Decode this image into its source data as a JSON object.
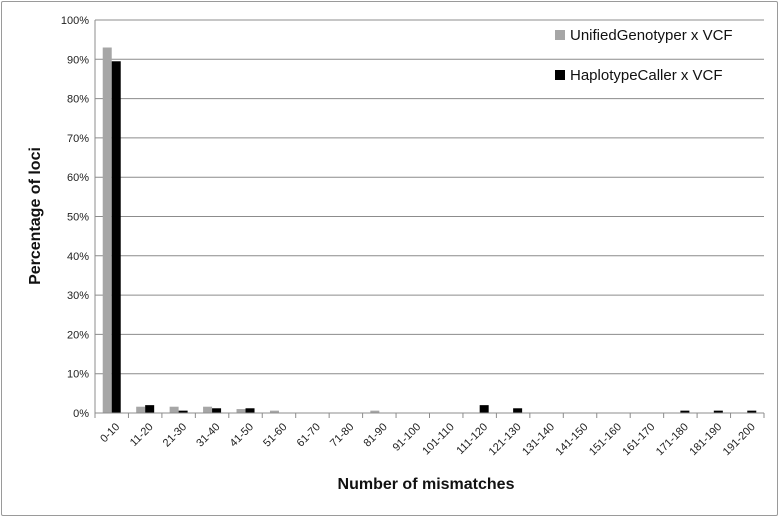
{
  "chart_data": {
    "type": "bar",
    "title": "",
    "xlabel": "Number of mismatches",
    "ylabel": "Percentage of loci",
    "ylim": [
      0,
      100
    ],
    "ytick_step": 10,
    "ytick_suffix": "%",
    "grid": true,
    "legend_position": "top-right",
    "categories": [
      "0-10",
      "11-20",
      "21-30",
      "31-40",
      "41-50",
      "51-60",
      "61-70",
      "71-80",
      "81-90",
      "91-100",
      "101-110",
      "111-120",
      "121-130",
      "131-140",
      "141-150",
      "151-160",
      "161-170",
      "171-180",
      "181-190",
      "191-200"
    ],
    "series": [
      {
        "name": "UnifiedGenotyper x VCF",
        "color": "#a6a6a6",
        "values": [
          93.0,
          1.6,
          1.6,
          1.6,
          1.0,
          0.6,
          0,
          0,
          0.6,
          0,
          0,
          0,
          0,
          0,
          0,
          0,
          0,
          0,
          0,
          0
        ]
      },
      {
        "name": "HaplotypeCaller x VCF",
        "color": "#000000",
        "values": [
          89.5,
          2.0,
          0.6,
          1.2,
          1.2,
          0,
          0,
          0,
          0,
          0,
          0,
          2.0,
          1.2,
          0,
          0,
          0,
          0,
          0.6,
          0.6,
          0.6
        ]
      }
    ]
  }
}
